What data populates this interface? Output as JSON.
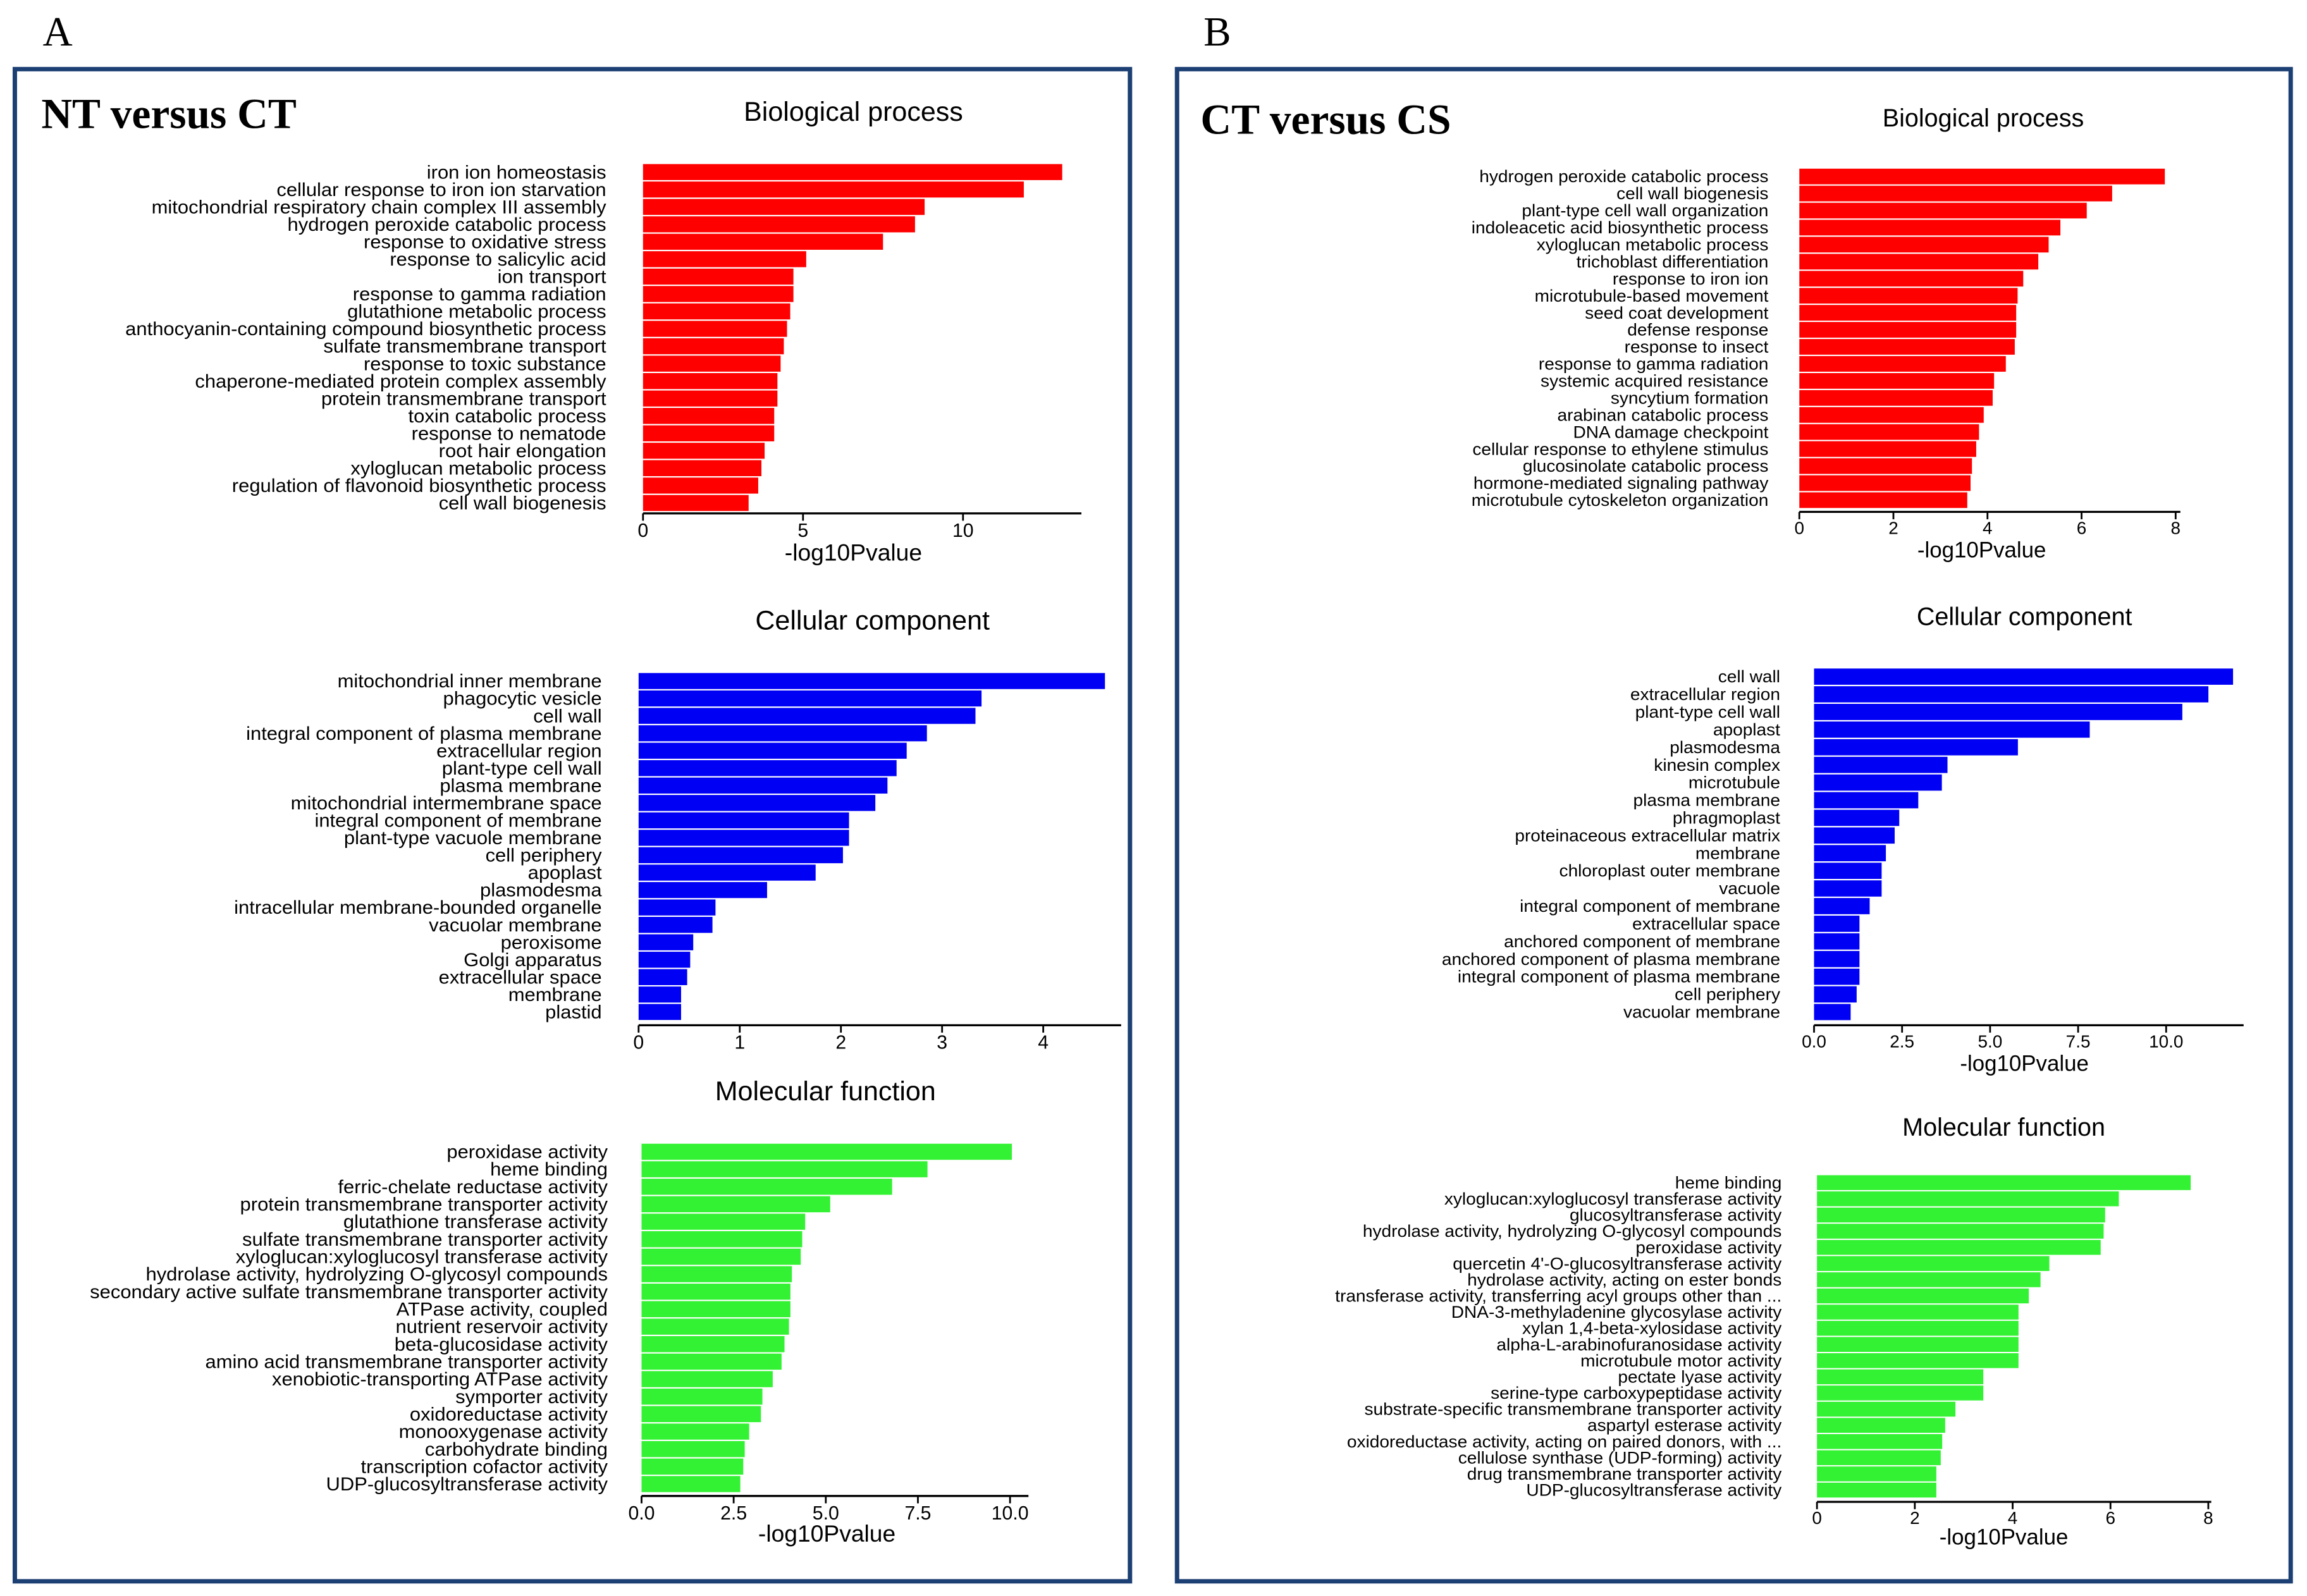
{
  "figure": {
    "panels": [
      {
        "letter": "A",
        "heading": "NT versus CT"
      },
      {
        "letter": "B",
        "heading": "CT versus CS"
      }
    ]
  },
  "colors": {
    "panel_border": "#1c3f74",
    "biological_process": "#ff0000",
    "cellular_component": "#0000f5",
    "molecular_function": "#33f233"
  },
  "chart_data": [
    {
      "type": "bar",
      "title": "Biological process",
      "categories": [
        "iron ion homeostasis",
        "cellular response to iron ion starvation",
        "mitochondrial respiratory chain complex III assembly",
        "hydrogen peroxide catabolic process",
        "response to oxidative stress",
        "response to salicylic acid",
        "ion transport",
        "response to gamma radiation",
        "glutathione metabolic process",
        "anthocyanin-containing compound biosynthetic process",
        "sulfate transmembrane transport",
        "response to toxic substance",
        "chaperone-mediated protein complex assembly",
        "protein transmembrane transport",
        "toxin catabolic process",
        "response to nematode",
        "root hair elongation",
        "xyloglucan metabolic process",
        "regulation of flavonoid biosynthetic process",
        "cell wall biogenesis"
      ],
      "values": [
        13.1,
        11.9,
        8.8,
        8.5,
        7.5,
        5.1,
        4.7,
        4.7,
        4.6,
        4.5,
        4.4,
        4.3,
        4.2,
        4.2,
        4.1,
        4.1,
        3.8,
        3.7,
        3.6,
        3.3
      ],
      "xlabel": "-log10Pvalue",
      "xlim": [
        0,
        13.7
      ],
      "ticks": [
        0,
        5,
        10
      ],
      "tick_labels": [
        "0",
        "5",
        "10"
      ],
      "color": "#ff0000"
    },
    {
      "type": "bar",
      "title": "Cellular component",
      "categories": [
        "mitochondrial inner membrane",
        "phagocytic vesicle",
        "cell wall",
        "integral component of plasma membrane",
        "extracellular region",
        "plant-type cell wall",
        "plasma membrane",
        "mitochondrial intermembrane space",
        "integral component of membrane",
        "plant-type vacuole membrane",
        "cell periphery",
        "apoplast",
        "plasmodesma",
        "intracellular membrane-bounded organelle",
        "vacuolar membrane",
        "peroxisome",
        "Golgi apparatus",
        "extracellular space",
        "membrane",
        "plastid"
      ],
      "values": [
        4.61,
        3.39,
        3.33,
        2.85,
        2.65,
        2.55,
        2.46,
        2.34,
        2.08,
        2.08,
        2.02,
        1.75,
        1.27,
        0.76,
        0.73,
        0.54,
        0.51,
        0.48,
        0.42,
        0.42
      ],
      "xlim": [
        0,
        4.77
      ],
      "ticks": [
        0,
        1,
        2,
        3,
        4
      ],
      "tick_labels": [
        "0",
        "1",
        "2",
        "3",
        "4"
      ],
      "color": "#0000f5"
    },
    {
      "type": "bar",
      "title": "Molecular function",
      "categories": [
        "peroxidase activity",
        "heme binding",
        "ferric-chelate reductase activity",
        "protein transmembrane transporter activity",
        "glutathione transferase activity",
        "sulfate transmembrane transporter activity",
        "xyloglucan:xyloglucosyl transferase activity",
        "hydrolase activity, hydrolyzing O-glycosyl compounds",
        "secondary active sulfate transmembrane transporter activity",
        "ATPase activity, coupled",
        "nutrient reservoir activity",
        "beta-glucosidase activity",
        "amino acid transmembrane transporter activity",
        "xenobiotic-transporting ATPase activity",
        "symporter activity",
        "oxidoreductase activity",
        "monooxygenase activity",
        "carbohydrate binding",
        "transcription cofactor activity",
        "UDP-glucosyltransferase activity"
      ],
      "values": [
        10.05,
        7.76,
        6.8,
        5.12,
        4.44,
        4.36,
        4.32,
        4.08,
        4.04,
        4.04,
        4.0,
        3.88,
        3.8,
        3.56,
        3.28,
        3.24,
        2.92,
        2.8,
        2.76,
        2.68
      ],
      "xlabel": "-log10Pvalue",
      "xlim": [
        0,
        10.5
      ],
      "ticks": [
        0,
        2.5,
        5,
        7.5,
        10
      ],
      "tick_labels": [
        "0.0",
        "2.5",
        "5.0",
        "7.5",
        "10.0"
      ],
      "color": "#33f233"
    },
    {
      "type": "bar",
      "title": "Biological process",
      "categories": [
        "hydrogen peroxide catabolic process",
        "cell wall biogenesis",
        "plant-type cell wall organization",
        "indoleacetic acid biosynthetic process",
        "xyloglucan metabolic process",
        "trichoblast differentiation",
        "response to iron ion",
        "microtubule-based movement",
        "seed coat development",
        "defense response",
        "response to insect",
        "response to gamma radiation",
        "systemic acquired resistance",
        "syncytium formation",
        "arabinan catabolic process",
        "DNA damage checkpoint",
        "cellular response to ethylene stimulus",
        "glucosinolate catabolic process",
        "hormone-mediated signaling pathway",
        "microtubule cytoskeleton organization"
      ],
      "values": [
        7.77,
        6.65,
        6.11,
        5.55,
        5.3,
        5.08,
        4.76,
        4.64,
        4.61,
        4.61,
        4.58,
        4.39,
        4.14,
        4.11,
        3.92,
        3.82,
        3.76,
        3.67,
        3.64,
        3.57
      ],
      "xlabel": "-log10Pvalue",
      "xlim": [
        0,
        8.1
      ],
      "ticks": [
        0,
        2,
        4,
        6,
        8
      ],
      "tick_labels": [
        "0",
        "2",
        "4",
        "6",
        "8"
      ],
      "color": "#ff0000"
    },
    {
      "type": "bar",
      "title": "Cellular component",
      "categories": [
        "cell wall",
        "extracellular region",
        "plant-type cell wall",
        "apoplast",
        "plasmodesma",
        "kinesin complex",
        "microtubule",
        "plasma membrane",
        "phragmoplast",
        "proteinaceous extracellular matrix",
        "membrane",
        "chloroplast outer membrane",
        "vacuole",
        "integral component of membrane",
        "extracellular space",
        "anchored component of membrane",
        "anchored component of plasma membrane",
        "integral component of plasma membrane",
        "cell periphery",
        "vacuolar membrane"
      ],
      "values": [
        11.9,
        11.2,
        10.46,
        7.83,
        5.79,
        3.79,
        3.63,
        2.96,
        2.42,
        2.29,
        2.04,
        1.92,
        1.92,
        1.58,
        1.29,
        1.29,
        1.29,
        1.29,
        1.21,
        1.04
      ],
      "xlabel": "-log10Pvalue",
      "xlim": [
        0,
        12.2
      ],
      "ticks": [
        0,
        2.5,
        5,
        7.5,
        10
      ],
      "tick_labels": [
        "0.0",
        "2.5",
        "5.0",
        "7.5",
        "10.0"
      ],
      "color": "#0000f5"
    },
    {
      "type": "bar",
      "title": "Molecular function",
      "categories": [
        "heme binding",
        "xyloglucan:xyloglucosyl transferase activity",
        "glucosyltransferase activity",
        "hydrolase activity, hydrolyzing O-glycosyl compounds",
        "peroxidase activity",
        "quercetin 4'-O-glucosyltransferase activity",
        "hydrolase activity, acting on ester bonds",
        "transferase activity, transferring acyl groups other than ...",
        "DNA-3-methyladenine glycosylase activity",
        "xylan 1,4-beta-xylosidase activity",
        "alpha-L-arabinofuranosidase activity",
        "microtubule motor activity",
        "pectate lyase activity",
        "serine-type carboxypeptidase activity",
        "substrate-specific transmembrane transporter activity",
        "aspartyl esterase activity",
        "oxidoreductase activity, acting on paired donors, with ...",
        "cellulose synthase (UDP-forming) activity",
        "drug transmembrane transporter activity",
        "UDP-glucosyltransferase activity"
      ],
      "values": [
        7.64,
        6.17,
        5.89,
        5.86,
        5.8,
        4.75,
        4.57,
        4.33,
        4.12,
        4.12,
        4.12,
        4.12,
        3.4,
        3.4,
        2.83,
        2.62,
        2.56,
        2.53,
        2.44,
        2.44
      ],
      "xlabel": "-log10Pvalue",
      "xlim": [
        0,
        8.06
      ],
      "ticks": [
        0,
        2,
        4,
        6,
        8
      ],
      "tick_labels": [
        "0",
        "2",
        "4",
        "6",
        "8"
      ],
      "color": "#33f233"
    }
  ]
}
